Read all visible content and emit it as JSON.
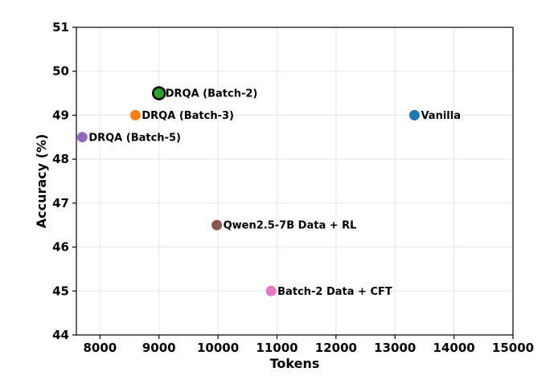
{
  "chart_data": {
    "type": "scatter",
    "title": "",
    "xlabel": "Tokens",
    "ylabel": "Accuracy (%)",
    "xlim": [
      7600,
      15000
    ],
    "ylim": [
      44,
      51
    ],
    "xticks": [
      "8000",
      "9000",
      "10000",
      "11000",
      "12000",
      "13000",
      "14000",
      "15000"
    ],
    "yticks": [
      "44",
      "45",
      "46",
      "47",
      "48",
      "49",
      "50",
      "51"
    ],
    "grid": true,
    "points": [
      {
        "label": "DRQA (Batch-2)",
        "x": 9000,
        "y": 49.5,
        "color": "#2ca02c",
        "highlight": true
      },
      {
        "label": "DRQA (Batch-3)",
        "x": 8600,
        "y": 49.0,
        "color": "#ff7f0e",
        "highlight": false
      },
      {
        "label": "DRQA (Batch-5)",
        "x": 7700,
        "y": 48.5,
        "color": "#9467bd",
        "highlight": false
      },
      {
        "label": "Vanilla",
        "x": 13330,
        "y": 49.0,
        "color": "#1f77b4",
        "highlight": false
      },
      {
        "label": "Qwen2.5-7B Data + RL",
        "x": 9980,
        "y": 46.5,
        "color": "#8c564b",
        "highlight": false
      },
      {
        "label": "Batch-2 Data + CFT",
        "x": 10900,
        "y": 45.0,
        "color": "#e377c2",
        "highlight": false
      }
    ]
  }
}
